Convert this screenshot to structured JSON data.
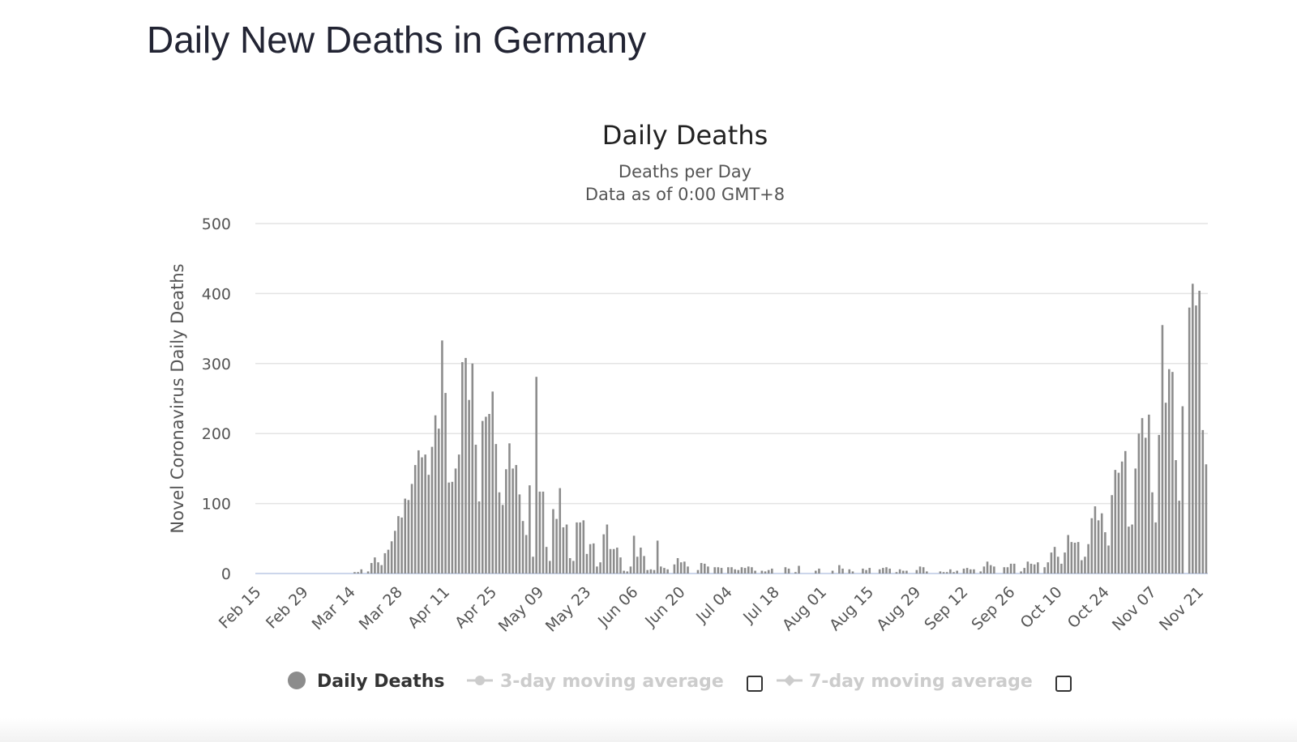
{
  "page": {
    "title": "Daily New Deaths in Germany"
  },
  "chart_data": {
    "type": "bar",
    "title": "Daily Deaths",
    "subtitle_lines": [
      "Deaths per Day",
      "Data as of 0:00 GMT+8"
    ],
    "xlabel": "",
    "ylabel": "Novel Coronavirus Daily Deaths",
    "ylim": [
      0,
      500
    ],
    "yticks": [
      0,
      100,
      200,
      300,
      400,
      500
    ],
    "x_start": "Feb 15",
    "x_tick_labels": [
      "Feb 15",
      "Feb 29",
      "Mar 14",
      "Mar 28",
      "Apr 11",
      "Apr 25",
      "May 09",
      "May 23",
      "Jun 06",
      "Jun 20",
      "Jul 04",
      "Jul 18",
      "Aug 01",
      "Aug 15",
      "Aug 29",
      "Sep 12",
      "Sep 26",
      "Oct 10",
      "Oct 24",
      "Nov 07",
      "Nov 21"
    ],
    "grid": true,
    "bar_color": "#8c8c8c",
    "series": [
      {
        "name": "Daily Deaths",
        "values": [
          0,
          0,
          0,
          0,
          0,
          0,
          0,
          0,
          0,
          0,
          0,
          0,
          0,
          0,
          0,
          0,
          0,
          0,
          0,
          0,
          0,
          0,
          0,
          0,
          0,
          0,
          0,
          0,
          0,
          2,
          2,
          6,
          0,
          3,
          15,
          23,
          16,
          12,
          29,
          34,
          46,
          61,
          82,
          80,
          107,
          105,
          128,
          155,
          176,
          166,
          170,
          141,
          181,
          226,
          207,
          333,
          258,
          130,
          131,
          150,
          170,
          302,
          308,
          248,
          300,
          184,
          103,
          218,
          224,
          228,
          260,
          185,
          116,
          98,
          149,
          186,
          150,
          155,
          113,
          75,
          55,
          126,
          24,
          281,
          117,
          117,
          38,
          18,
          92,
          78,
          122,
          66,
          70,
          22,
          18,
          73,
          73,
          76,
          28,
          42,
          43,
          10,
          16,
          56,
          70,
          35,
          35,
          37,
          23,
          4,
          3,
          10,
          54,
          24,
          37,
          25,
          5,
          6,
          5,
          47,
          10,
          8,
          6,
          0,
          13,
          22,
          16,
          17,
          10,
          0,
          0,
          5,
          15,
          14,
          10,
          0,
          9,
          9,
          8,
          0,
          9,
          9,
          6,
          5,
          9,
          8,
          10,
          9,
          4,
          0,
          4,
          3,
          5,
          7,
          0,
          0,
          0,
          9,
          7,
          0,
          2,
          11,
          0,
          0,
          0,
          0,
          4,
          7,
          0,
          0,
          0,
          4,
          0,
          12,
          7,
          0,
          6,
          3,
          0,
          0,
          7,
          5,
          8,
          0,
          0,
          6,
          8,
          9,
          7,
          0,
          2,
          6,
          4,
          4,
          0,
          0,
          5,
          10,
          9,
          3,
          0,
          0,
          0,
          3,
          2,
          2,
          6,
          2,
          4,
          0,
          7,
          8,
          6,
          6,
          0,
          3,
          10,
          17,
          12,
          10,
          0,
          0,
          9,
          9,
          14,
          14,
          0,
          3,
          8,
          17,
          14,
          13,
          16,
          0,
          9,
          16,
          30,
          38,
          24,
          14,
          30,
          55,
          45,
          44,
          45,
          19,
          24,
          42,
          79,
          96,
          76,
          86,
          59,
          40,
          112,
          148,
          144,
          160,
          175,
          67,
          70,
          150,
          200,
          222,
          194,
          227,
          116,
          73,
          198,
          355,
          244,
          292,
          288,
          162,
          104,
          239,
          0,
          380,
          414,
          383,
          404,
          205,
          156
        ]
      }
    ],
    "legend": {
      "placement": "bottom",
      "items": [
        {
          "label": "Daily Deaths",
          "active": true,
          "marker": "circle",
          "color": "#8c8c8c"
        },
        {
          "label": "3-day moving average",
          "active": false,
          "marker": "line-circle",
          "color": "#cccccc"
        },
        {
          "label": "7-day moving average",
          "active": false,
          "marker": "line-diamond",
          "color": "#cccccc"
        }
      ]
    }
  }
}
